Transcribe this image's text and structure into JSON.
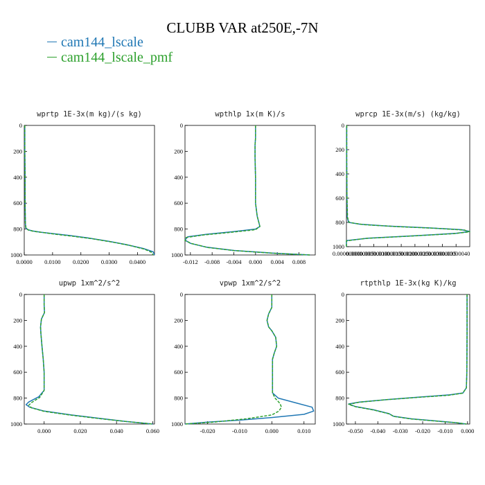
{
  "title": "CLUBB VAR at250E,-7N",
  "legend": [
    {
      "label": "cam144_lscale",
      "color": "#1f77b4"
    },
    {
      "label": "cam144_lscale_pmf",
      "color": "#2ca02c"
    }
  ],
  "chart_data": [
    {
      "type": "line",
      "title": "wprtp  1E-3x(m kg)/(s kg)",
      "xlim": [
        0,
        0.046
      ],
      "ylim": [
        1000,
        0
      ],
      "xticks": [
        "0.0000",
        "0.0100",
        "0.0200",
        "0.0300",
        "0.0400"
      ],
      "xtick_values": [
        0,
        0.01,
        0.02,
        0.03,
        0.04
      ],
      "yticks": [
        0,
        200,
        400,
        600,
        800,
        1000
      ],
      "series": [
        {
          "color": "#1f77b4",
          "x": [
            0.0002,
            0.0002,
            0.0003,
            0.0003,
            0.0004,
            0.0005,
            0.0012,
            0.003,
            0.006,
            0.01,
            0.016,
            0.023,
            0.03,
            0.036,
            0.042,
            0.0455,
            0.046
          ],
          "y": [
            0,
            200,
            400,
            600,
            750,
            790,
            805,
            815,
            825,
            835,
            850,
            870,
            895,
            920,
            950,
            975,
            1000
          ]
        },
        {
          "color": "#2ca02c",
          "x": [
            0.0002,
            0.0002,
            0.0003,
            0.0003,
            0.0004,
            0.0006,
            0.0015,
            0.0035,
            0.007,
            0.011,
            0.017,
            0.024,
            0.031,
            0.037,
            0.0425,
            0.045,
            0.0455
          ],
          "y": [
            0,
            200,
            400,
            600,
            750,
            790,
            808,
            818,
            828,
            840,
            855,
            875,
            900,
            925,
            955,
            980,
            1000
          ]
        }
      ]
    },
    {
      "type": "line",
      "title": "wpthlp  1x(m K)/s",
      "xlim": [
        -0.013,
        0.011
      ],
      "ylim": [
        1000,
        0
      ],
      "xticks": [
        "-0.012",
        "-0.008",
        "-0.004",
        "0.000",
        "0.004",
        "0.008"
      ],
      "xtick_values": [
        -0.012,
        -0.008,
        -0.004,
        0.0,
        0.004,
        0.008
      ],
      "yticks": [
        0,
        200,
        400,
        600,
        800,
        1000
      ],
      "series": [
        {
          "color": "#1f77b4",
          "x": [
            0.0,
            0.0,
            -0.0001,
            -0.0001,
            0.0,
            0.0,
            0.0003,
            0.0008,
            0.0,
            -0.004,
            -0.009,
            -0.0125,
            -0.013,
            -0.012,
            -0.009,
            -0.004,
            0.003,
            0.01
          ],
          "y": [
            0,
            100,
            150,
            250,
            400,
            600,
            700,
            780,
            800,
            820,
            840,
            860,
            885,
            910,
            940,
            965,
            985,
            1000
          ]
        },
        {
          "color": "#2ca02c",
          "x": [
            0.0,
            0.0,
            -0.0001,
            -0.0001,
            0.0,
            0.0,
            0.0003,
            0.0008,
            0.0,
            -0.0045,
            -0.0095,
            -0.0128,
            -0.013,
            -0.0118,
            -0.0088,
            -0.004,
            0.003,
            0.01
          ],
          "y": [
            0,
            100,
            150,
            250,
            400,
            600,
            700,
            780,
            805,
            825,
            845,
            865,
            888,
            912,
            942,
            966,
            986,
            1000
          ]
        }
      ]
    },
    {
      "type": "line",
      "title": "wprcp  1E-3x(m/s) (kg/kg)",
      "xlim": [
        0,
        4.5e-07
      ],
      "ylim": [
        1000,
        0
      ],
      "xticks": [
        "0.00000000",
        "0.00000005",
        "0.00000010",
        "0.00000015",
        "0.00000020",
        "0.00000025",
        "0.00000030",
        "0.00000035",
        "0.00000040"
      ],
      "xtick_values": [
        0,
        5e-08,
        1e-07,
        1.5e-07,
        2e-07,
        2.5e-07,
        3e-07,
        3.5e-07,
        4e-07
      ],
      "yticks": [
        0,
        200,
        400,
        600,
        800,
        1000
      ],
      "series": [
        {
          "color": "#1f77b4",
          "x": [
            1e-09,
            1e-09,
            2e-09,
            3e-09,
            8e-09,
            5e-08,
            1.5e-07,
            3e-07,
            4.2e-07,
            4.5e-07,
            4e-07,
            2.5e-07,
            8e-08,
            0.0,
            0.0
          ],
          "y": [
            0,
            300,
            600,
            760,
            800,
            815,
            830,
            845,
            860,
            875,
            890,
            910,
            930,
            950,
            1000
          ]
        },
        {
          "color": "#2ca02c",
          "x": [
            1e-09,
            1e-09,
            2e-09,
            4e-09,
            1e-08,
            6e-08,
            1.7e-07,
            3.2e-07,
            4.3e-07,
            4.5e-07,
            3.9e-07,
            2.4e-07,
            7e-08,
            0.0,
            0.0
          ],
          "y": [
            0,
            300,
            600,
            760,
            800,
            818,
            833,
            848,
            863,
            878,
            893,
            912,
            932,
            952,
            1000
          ]
        }
      ]
    },
    {
      "type": "line",
      "title": "upwp  1xm^2/s^2",
      "xlim": [
        -0.011,
        0.061
      ],
      "ylim": [
        1000,
        0
      ],
      "xticks": [
        "0.000",
        "0.020",
        "0.040",
        "0.060"
      ],
      "xtick_values": [
        0,
        0.02,
        0.04,
        0.06
      ],
      "yticks": [
        0,
        200,
        400,
        600,
        800,
        1000
      ],
      "series": [
        {
          "color": "#1f77b4",
          "x": [
            0.0,
            0.0,
            0.0002,
            -0.0015,
            -0.002,
            -0.0018,
            -0.0012,
            -0.0005,
            0.0,
            0.0,
            -0.003,
            -0.0085,
            -0.01,
            -0.008,
            0.0,
            0.015,
            0.03,
            0.045,
            0.06
          ],
          "y": [
            0,
            80,
            140,
            190,
            250,
            300,
            400,
            500,
            600,
            740,
            790,
            830,
            850,
            870,
            900,
            930,
            955,
            980,
            1000
          ]
        },
        {
          "color": "#2ca02c",
          "x": [
            0.0,
            0.0,
            0.0002,
            -0.0015,
            -0.002,
            -0.0018,
            -0.0012,
            -0.0005,
            0.0,
            0.0,
            -0.0025,
            -0.007,
            -0.0085,
            -0.007,
            0.0,
            0.015,
            0.03,
            0.045,
            0.06
          ],
          "y": [
            0,
            80,
            140,
            190,
            250,
            300,
            400,
            500,
            600,
            740,
            795,
            835,
            855,
            875,
            902,
            932,
            957,
            980,
            1000
          ]
        }
      ]
    },
    {
      "type": "line",
      "title": "vpwp  1xm^2/s^2",
      "xlim": [
        -0.027,
        0.0135
      ],
      "ylim": [
        1000,
        0
      ],
      "xticks": [
        "-0.020",
        "-0.010",
        "0.000",
        "0.010"
      ],
      "xtick_values": [
        -0.02,
        -0.01,
        0.0,
        0.01
      ],
      "yticks": [
        0,
        200,
        400,
        600,
        800,
        1000
      ],
      "series": [
        {
          "color": "#1f77b4",
          "x": [
            0.0,
            0.0,
            -0.001,
            -0.0015,
            -0.001,
            0.0,
            0.0012,
            0.0015,
            0.0008,
            0.0002,
            0.0002,
            0.002,
            0.008,
            0.0125,
            0.013,
            0.01,
            0.0,
            -0.01,
            -0.02,
            -0.027
          ],
          "y": [
            0,
            100,
            150,
            200,
            250,
            280,
            330,
            400,
            450,
            500,
            760,
            800,
            840,
            870,
            900,
            925,
            950,
            970,
            985,
            1000
          ]
        },
        {
          "color": "#2ca02c",
          "x": [
            0.0,
            0.0,
            -0.001,
            -0.0015,
            -0.001,
            0.0,
            0.0012,
            0.0015,
            0.0008,
            0.0002,
            0.0002,
            0.001,
            0.0025,
            0.003,
            0.0022,
            0.0,
            -0.008,
            -0.018,
            -0.027
          ],
          "y": [
            0,
            100,
            150,
            200,
            250,
            280,
            330,
            400,
            450,
            500,
            760,
            800,
            840,
            870,
            900,
            930,
            960,
            985,
            1000
          ]
        }
      ]
    },
    {
      "type": "line",
      "title": "rtpthlp  1E-3x(kg K)/kg",
      "xlim": [
        -0.054,
        0.001
      ],
      "ylim": [
        1000,
        0
      ],
      "xticks": [
        "-0.050",
        "-0.040",
        "-0.030",
        "-0.020",
        "-0.010",
        "0.000"
      ],
      "xtick_values": [
        -0.05,
        -0.04,
        -0.03,
        -0.02,
        -0.01,
        0.0
      ],
      "yticks": [
        0,
        200,
        400,
        600,
        800,
        1000
      ],
      "series": [
        {
          "color": "#1f77b4",
          "x": [
            -0.0002,
            -0.0002,
            -0.0003,
            -0.0005,
            -0.002,
            -0.008,
            -0.02,
            -0.035,
            -0.048,
            -0.053,
            -0.05,
            -0.042,
            -0.035,
            -0.033,
            -0.025,
            -0.015,
            -0.005,
            -0.0005
          ],
          "y": [
            0,
            300,
            600,
            720,
            760,
            775,
            790,
            810,
            830,
            845,
            865,
            890,
            920,
            940,
            960,
            975,
            990,
            1000
          ]
        },
        {
          "color": "#2ca02c",
          "x": [
            -0.0002,
            -0.0002,
            -0.0003,
            -0.0005,
            -0.0022,
            -0.0085,
            -0.021,
            -0.036,
            -0.0485,
            -0.053,
            -0.0498,
            -0.0418,
            -0.0348,
            -0.033,
            -0.025,
            -0.015,
            -0.005,
            -0.0005
          ],
          "y": [
            0,
            300,
            600,
            722,
            762,
            778,
            793,
            812,
            832,
            848,
            867,
            892,
            922,
            941,
            961,
            976,
            990,
            1000
          ]
        }
      ]
    }
  ]
}
